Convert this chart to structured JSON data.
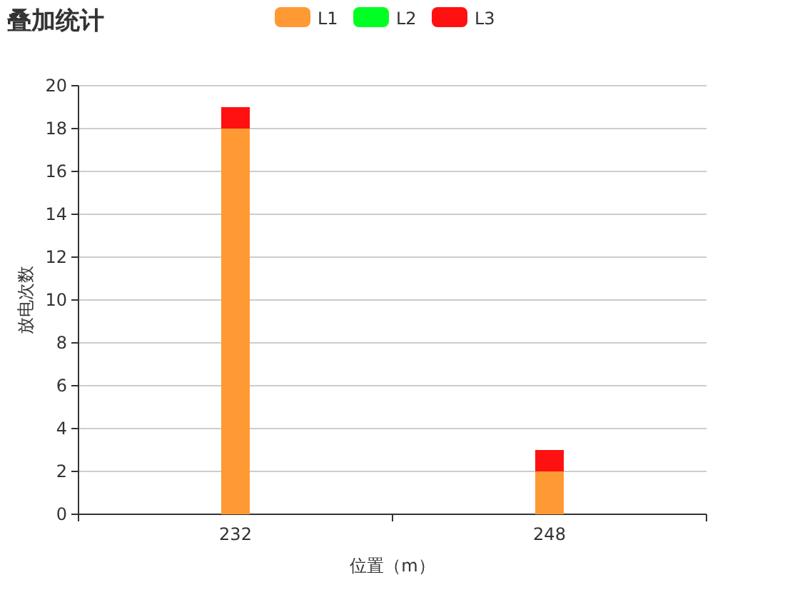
{
  "chart_data": {
    "type": "bar",
    "title": "叠加统计",
    "xlabel": "位置（m）",
    "ylabel": "放电次数",
    "categories": [
      "232",
      "248"
    ],
    "series": [
      {
        "name": "L1",
        "color": "#ff9933",
        "values": [
          18,
          2
        ]
      },
      {
        "name": "L2",
        "color": "#00ff22",
        "values": [
          0,
          0
        ]
      },
      {
        "name": "L3",
        "color": "#ff1111",
        "values": [
          1,
          1
        ]
      }
    ],
    "stacked": true,
    "ylim": [
      0,
      20
    ],
    "yticks": [
      0,
      2,
      4,
      6,
      8,
      10,
      12,
      14,
      16,
      18,
      20
    ],
    "grid": "y",
    "legend": "top"
  }
}
